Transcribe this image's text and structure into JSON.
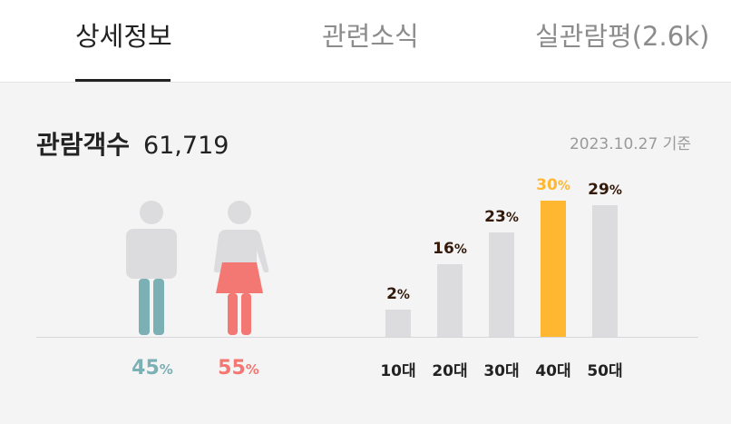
{
  "tabs": [
    {
      "label": "상세정보",
      "active": true
    },
    {
      "label": "관련소식",
      "active": false
    },
    {
      "label": "실관람평(2.6k)",
      "active": false
    }
  ],
  "stats": {
    "title": "관람객수",
    "count": "61,719",
    "date": "2023.10.27 기준"
  },
  "gender": {
    "male": {
      "value": "45",
      "unit": "%",
      "color": "#7bb0b4"
    },
    "female": {
      "value": "55",
      "unit": "%",
      "color": "#f37873"
    }
  },
  "chart_data": {
    "type": "bar",
    "categories": [
      "10대",
      "20대",
      "30대",
      "40대",
      "50대"
    ],
    "values": [
      2,
      16,
      23,
      30,
      29
    ],
    "unit": "%",
    "highlight_index": 3,
    "colors": {
      "default": "#dcdcde",
      "highlight": "#ffb732"
    }
  }
}
